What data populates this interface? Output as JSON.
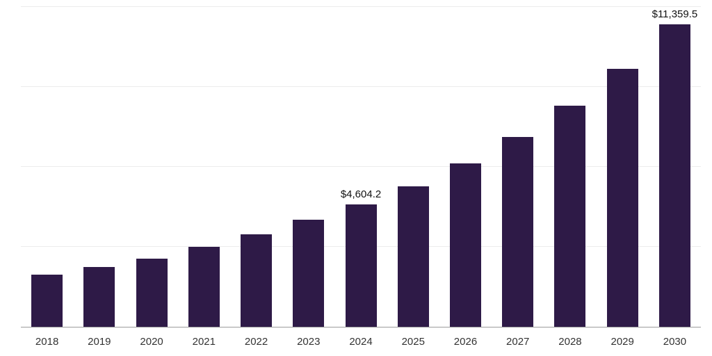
{
  "chart_data": {
    "type": "bar",
    "title": "",
    "xlabel": "",
    "ylabel": "",
    "categories": [
      "2018",
      "2019",
      "2020",
      "2021",
      "2022",
      "2023",
      "2024",
      "2025",
      "2026",
      "2027",
      "2028",
      "2029",
      "2030"
    ],
    "values": [
      1950,
      2250,
      2560,
      2990,
      3480,
      4010,
      4604.2,
      5270,
      6140,
      7130,
      8290,
      9670,
      11359.5
    ],
    "annotations": {
      "2024": "$4,604.2",
      "2030": "$11,359.5"
    },
    "ylim": [
      0,
      12000
    ],
    "gridlines": [
      3000,
      6000,
      9000,
      12000
    ],
    "grid_on": true,
    "legend": "none",
    "bar_color": "#2e1a47",
    "grid_color": "#ececec",
    "axis_color": "#9b9b9b",
    "tick_label_color": "#333333",
    "value_label_color": "#111111"
  }
}
